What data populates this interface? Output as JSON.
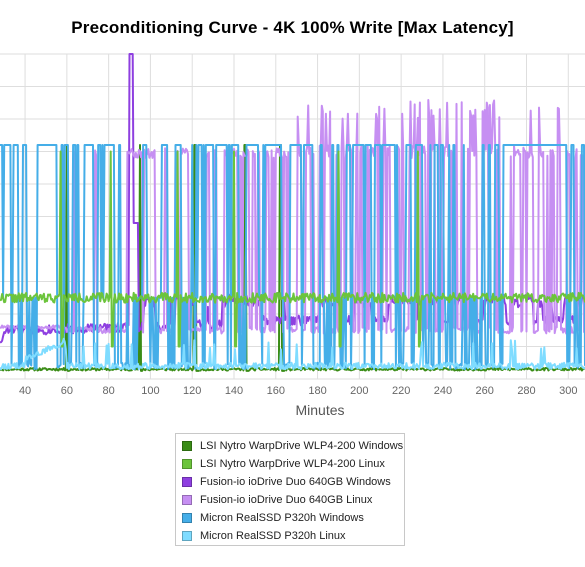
{
  "chart_data": {
    "type": "line",
    "title": "Preconditioning Curve - 4K 100% Write [Max Latency]",
    "xlabel": "Minutes",
    "ylabel": "",
    "x_ticks": [
      40,
      60,
      80,
      100,
      120,
      140,
      160,
      180,
      200,
      220,
      240,
      260,
      280,
      300
    ],
    "xlim": [
      28,
      308
    ],
    "ylim": [
      0,
      100
    ],
    "grid": true,
    "legend_position": "bottom",
    "series": [
      {
        "name": "LSI Nytro WarpDrive WLP4-200 Windows",
        "color": "#3a8c16",
        "baseline": 3,
        "spike_low": 2.5,
        "spike_high": 72,
        "spikes": [
          [
            60,
            61
          ],
          [
            95,
            96
          ],
          [
            121,
            123
          ],
          [
            145,
            147
          ],
          [
            162,
            164
          ]
        ],
        "values": []
      },
      {
        "name": "LSI Nytro WarpDrive WLP4-200 Linux",
        "color": "#6cc43c",
        "baseline": 25,
        "noise": 1.5,
        "spike_high": 70,
        "spike_low": 10,
        "spikes": [
          [
            57,
            58
          ],
          [
            81,
            82
          ],
          [
            113,
            114
          ],
          [
            140,
            141
          ],
          [
            190,
            191
          ],
          [
            228,
            229
          ]
        ],
        "values": []
      },
      {
        "name": "Fusion-io ioDrive Duo 640GB Windows",
        "color": "#8e3fe0",
        "baseline": 15,
        "noise": 1.5,
        "spike_high": 100,
        "spike_low": 15,
        "spikes": [
          [
            90,
            91
          ],
          [
            91,
            92
          ],
          [
            92,
            93
          ],
          [
            93,
            94
          ]
        ],
        "values": []
      },
      {
        "name": "Fusion-io ioDrive Duo 640GB Linux",
        "color": "#c68ff2",
        "baseline": 16,
        "spike_high": 82,
        "spike_low": 16,
        "density_start": 100,
        "values": []
      },
      {
        "name": "Micron RealSSD P320h Windows",
        "color": "#45aee8",
        "baseline": 3,
        "spike_high": 72,
        "spike_low": 3,
        "values": []
      },
      {
        "name": "Micron RealSSD P320h Linux",
        "color": "#7fdcff",
        "baseline": 4,
        "noise": 2,
        "spike_high": 9,
        "values": []
      }
    ]
  }
}
